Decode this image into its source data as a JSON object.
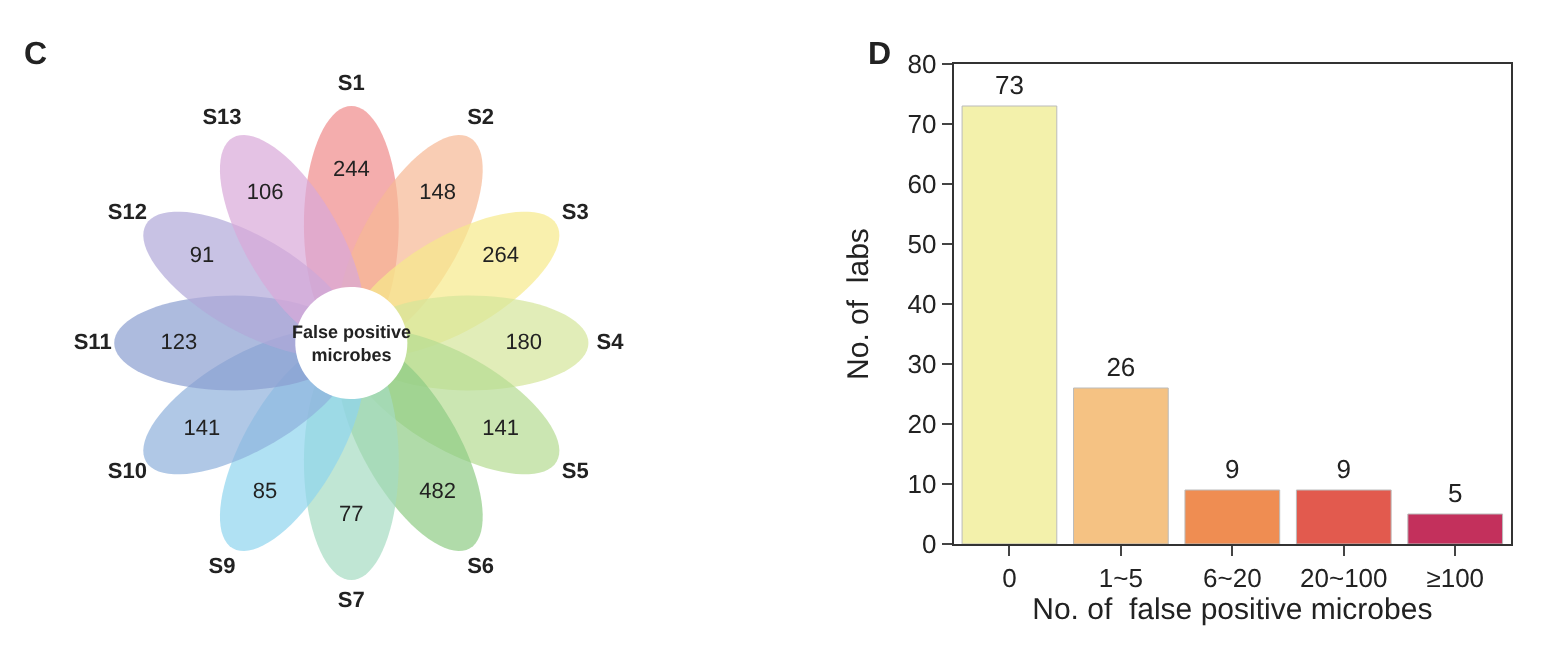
{
  "chart_data": [
    {
      "type": "other",
      "title": "C",
      "annotations": [
        "False positive\nmicrobes"
      ],
      "categories": [
        "S1",
        "S2",
        "S3",
        "S4",
        "S5",
        "S6",
        "S7",
        "S9",
        "S10",
        "S11",
        "S12",
        "S13"
      ],
      "values": [
        244,
        148,
        264,
        180,
        141,
        482,
        77,
        85,
        141,
        123,
        91,
        106
      ],
      "data_labels": true,
      "colors": [
        "#f08a8a",
        "#f6b894",
        "#f7e98a",
        "#d4e69a",
        "#b5dc92",
        "#8fcc85",
        "#a5dcc2",
        "#8fd4ee",
        "#8eb0dc",
        "#8a9ed0",
        "#b0a8d8",
        "#d9a8d8"
      ]
    },
    {
      "type": "bar",
      "title": "D",
      "xlabel": "No. of  false positive microbes",
      "ylabel": "No. of  labs",
      "categories": [
        "0",
        "1~5",
        "6~20",
        "20~100",
        "≥100"
      ],
      "values": [
        73,
        26,
        9,
        9,
        5
      ],
      "colors": [
        "#f3f1ab",
        "#f5c283",
        "#ef8d52",
        "#e25a4e",
        "#c3305c"
      ],
      "ylim": [
        0,
        80
      ],
      "yticks": [
        0,
        10,
        20,
        30,
        40,
        50,
        60,
        70,
        80
      ],
      "data_labels": true
    }
  ]
}
